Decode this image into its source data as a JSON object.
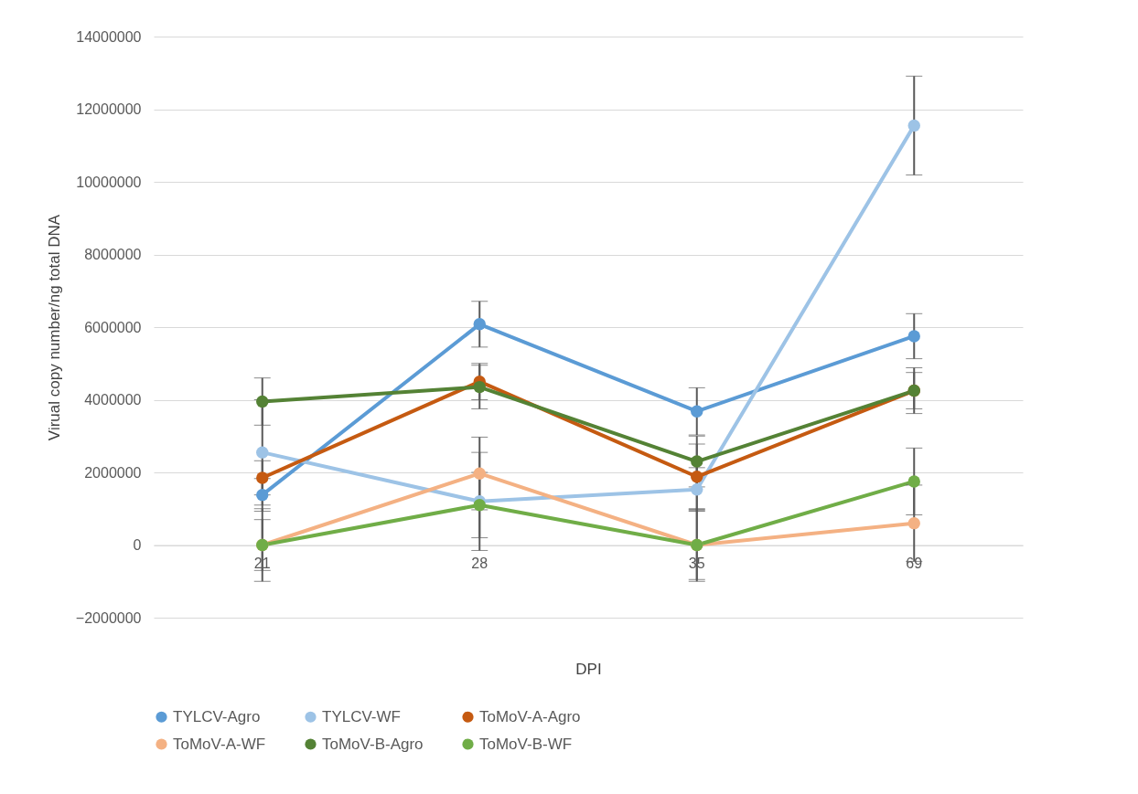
{
  "chart_data": {
    "type": "line",
    "xlabel": "DPI",
    "ylabel": "Virual copy number/ng total DNA",
    "categories": [
      "21",
      "28",
      "35",
      "69"
    ],
    "series": [
      {
        "name": "TYLCV-Agro",
        "color": "#5b9bd5",
        "values": [
          1380000,
          6080000,
          3680000,
          5750000
        ],
        "errors": [
          450000,
          630000,
          650000,
          620000
        ]
      },
      {
        "name": "TYLCV-WF",
        "color": "#9dc3e6",
        "values": [
          2550000,
          1200000,
          1530000,
          11550000
        ],
        "errors": [
          1450000,
          1350000,
          600000,
          1360000
        ]
      },
      {
        "name": "ToMoV-A-Agro",
        "color": "#c55a11",
        "values": [
          1850000,
          4500000,
          1880000,
          4250000
        ],
        "errors": [
          470000,
          500000,
          900000,
          630000
        ]
      },
      {
        "name": "ToMoV-A-WF",
        "color": "#f4b183",
        "values": [
          0,
          1970000,
          0,
          600000
        ],
        "errors": [
          1000000,
          1000000,
          1000000,
          1050000
        ]
      },
      {
        "name": "ToMoV-B-Agro",
        "color": "#548235",
        "values": [
          3950000,
          4350000,
          2300000,
          4250000
        ],
        "errors": [
          650000,
          600000,
          700000,
          500000
        ]
      },
      {
        "name": "ToMoV-B-WF",
        "color": "#70ad47",
        "values": [
          0,
          1100000,
          0,
          1750000
        ],
        "errors": [
          700000,
          900000,
          950000,
          920000
        ]
      }
    ],
    "ylim": [
      -2000000,
      14000000
    ],
    "yticks": [
      -2000000,
      0,
      2000000,
      4000000,
      6000000,
      8000000,
      10000000,
      12000000,
      14000000
    ],
    "grid": "y",
    "legend": "bottom",
    "marker": "circle",
    "line_style": "solid"
  }
}
